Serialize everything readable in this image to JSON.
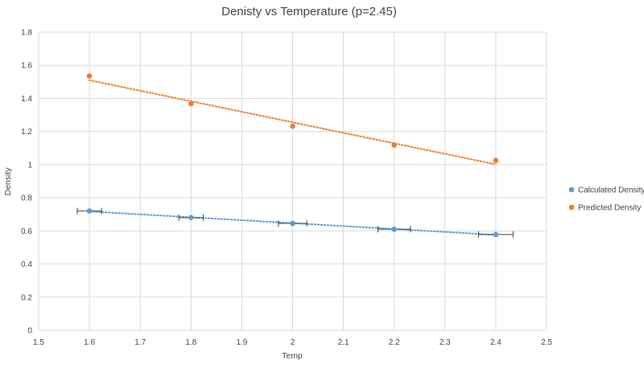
{
  "chart_data": {
    "type": "scatter",
    "title": "Denisty vs Temperature (p=2.45)",
    "xlabel": "Temp",
    "ylabel": "Density",
    "xlim": [
      1.5,
      2.5
    ],
    "ylim": [
      0,
      1.8
    ],
    "x_ticks": [
      "1.5",
      "1.6",
      "1.7",
      "1.8",
      "1.9",
      "2",
      "2.1",
      "2.2",
      "2.3",
      "2.4",
      "2.5"
    ],
    "y_ticks": [
      "0",
      "0.2",
      "0.4",
      "0.6",
      "0.8",
      "1",
      "1.2",
      "1.4",
      "1.6",
      "1.8"
    ],
    "grid": true,
    "legend_position": "right",
    "series": [
      {
        "name": "Calculated Density",
        "color": "#5b9bd5",
        "x": [
          1.6,
          1.8,
          2.0,
          2.2,
          2.4
        ],
        "y": [
          0.72,
          0.68,
          0.645,
          0.61,
          0.578
        ],
        "x_error": [
          0.024,
          0.024,
          0.028,
          0.032,
          0.034
        ],
        "trendline": "linear dotted"
      },
      {
        "name": "Predicted Density",
        "color": "#ed7d31",
        "x": [
          1.6,
          1.8,
          2.0,
          2.2,
          2.4
        ],
        "y": [
          1.535,
          1.368,
          1.232,
          1.118,
          1.025
        ],
        "trendline": "linear dotted"
      }
    ]
  }
}
